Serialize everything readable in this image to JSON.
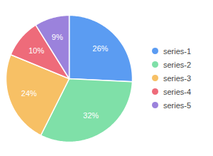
{
  "chart_data": {
    "type": "pie",
    "categories": [
      "series-1",
      "series-2",
      "series-3",
      "series-4",
      "series-5"
    ],
    "values": [
      26,
      32,
      24,
      10,
      9
    ],
    "value_labels": [
      "26%",
      "32%",
      "24%",
      "10%",
      "9%"
    ],
    "colors": [
      "#5b9cf2",
      "#7fe0a8",
      "#f7c065",
      "#ee6b7a",
      "#9b82dc"
    ],
    "data_labels": true,
    "legend": "right"
  }
}
